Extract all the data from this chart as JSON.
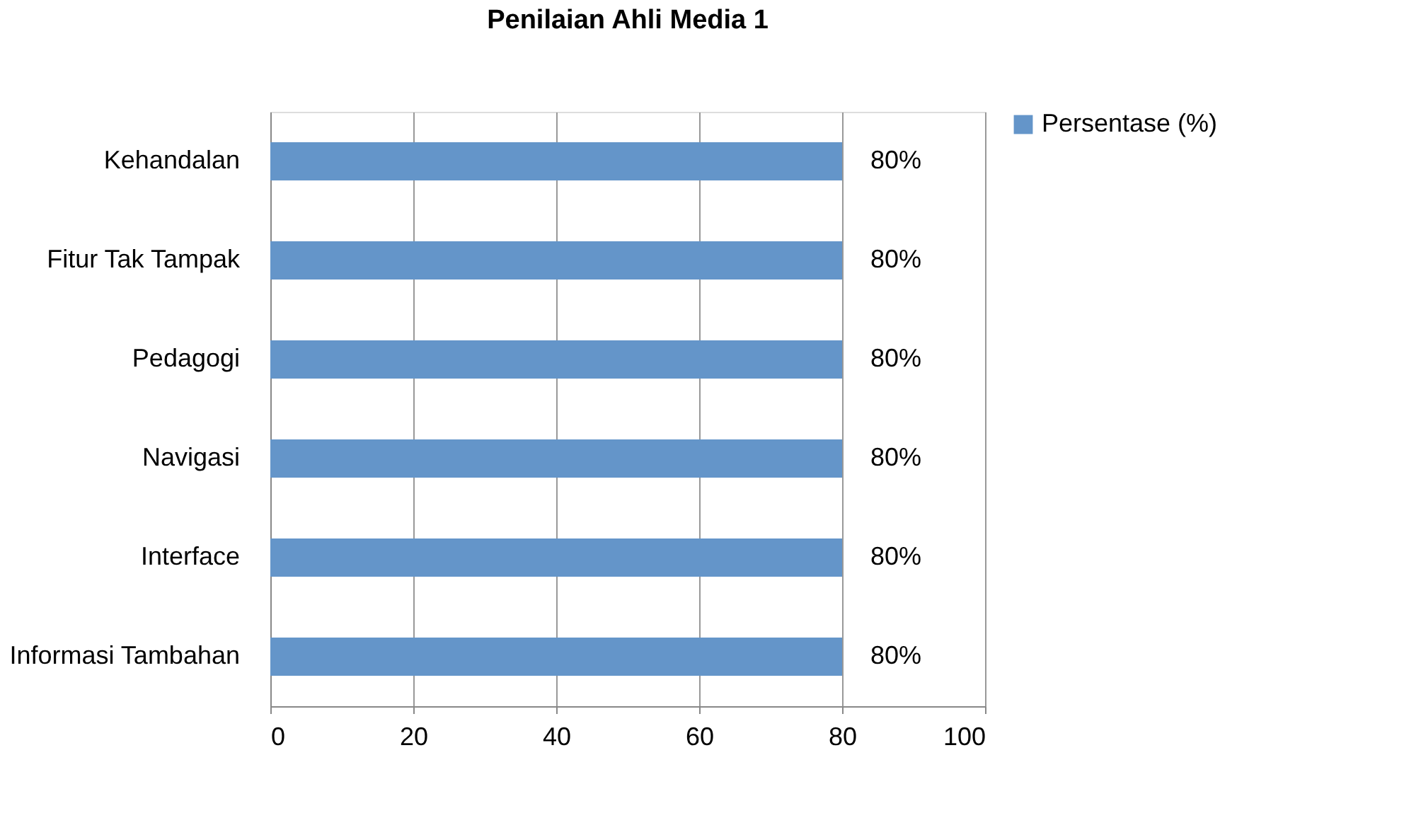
{
  "chart_data": {
    "type": "bar",
    "orientation": "horizontal",
    "title": "Penilaian Ahli Media 1",
    "categories": [
      "Kehandalan",
      "Fitur Tak Tampak",
      "Pedagogi",
      "Navigasi",
      "Interface",
      "Informasi Tambahan"
    ],
    "series": [
      {
        "name": "Persentase (%)",
        "color": "#6495c9",
        "values": [
          80,
          80,
          80,
          80,
          80,
          80
        ],
        "value_labels": [
          "80%",
          "80%",
          "80%",
          "80%",
          "80%",
          "80%"
        ]
      }
    ],
    "xlim": [
      0,
      100
    ],
    "xticks": [
      0,
      20,
      40,
      60,
      80,
      100
    ],
    "grid": "x",
    "legend": "right"
  }
}
